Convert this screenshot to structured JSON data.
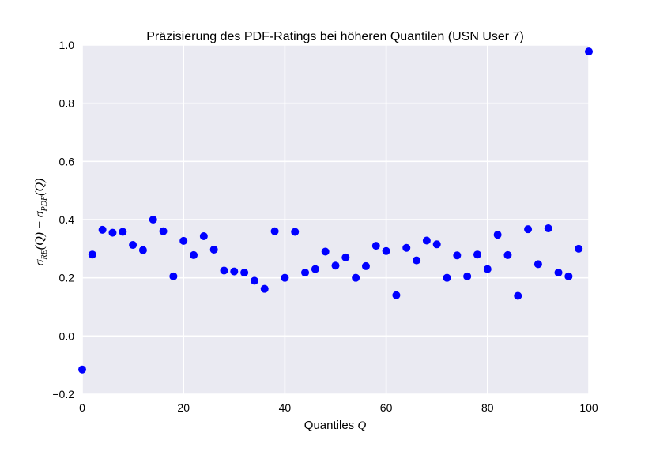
{
  "chart_data": {
    "type": "scatter",
    "title": "Präzisierung des PDF-Ratings bei höheren Quantilen (USN User 7)",
    "xlabel": "Quantiles Q",
    "xlabel_parts": {
      "text": "Quantiles ",
      "math": "Q"
    },
    "ylabel": "σRE(Q) − σPDF(Q)",
    "xlim": [
      0,
      100
    ],
    "ylim": [
      -0.2,
      1.0
    ],
    "x_ticks": [
      0,
      20,
      40,
      60,
      80,
      100
    ],
    "x_tick_labels": [
      "0",
      "20",
      "40",
      "60",
      "80",
      "100"
    ],
    "y_ticks": [
      -0.2,
      0.0,
      0.2,
      0.4,
      0.6,
      0.8,
      1.0
    ],
    "y_tick_labels": [
      "−0.2",
      "0.0",
      "0.2",
      "0.4",
      "0.6",
      "0.8",
      "1.0"
    ],
    "grid": true,
    "series": [
      {
        "color": "#0000ff",
        "points": [
          [
            0,
            -0.115
          ],
          [
            2,
            0.28
          ],
          [
            4,
            0.365
          ],
          [
            6,
            0.355
          ],
          [
            8,
            0.358
          ],
          [
            10,
            0.313
          ],
          [
            12,
            0.295
          ],
          [
            14,
            0.4
          ],
          [
            16,
            0.36
          ],
          [
            18,
            0.205
          ],
          [
            20,
            0.327
          ],
          [
            22,
            0.278
          ],
          [
            24,
            0.343
          ],
          [
            26,
            0.297
          ],
          [
            28,
            0.225
          ],
          [
            30,
            0.222
          ],
          [
            32,
            0.218
          ],
          [
            34,
            0.19
          ],
          [
            36,
            0.162
          ],
          [
            38,
            0.36
          ],
          [
            40,
            0.2
          ],
          [
            42,
            0.358
          ],
          [
            44,
            0.218
          ],
          [
            46,
            0.23
          ],
          [
            48,
            0.29
          ],
          [
            50,
            0.242
          ],
          [
            52,
            0.27
          ],
          [
            54,
            0.2
          ],
          [
            56,
            0.24
          ],
          [
            58,
            0.31
          ],
          [
            60,
            0.292
          ],
          [
            62,
            0.14
          ],
          [
            64,
            0.303
          ],
          [
            66,
            0.26
          ],
          [
            68,
            0.328
          ],
          [
            70,
            0.315
          ],
          [
            72,
            0.2
          ],
          [
            74,
            0.277
          ],
          [
            76,
            0.205
          ],
          [
            78,
            0.28
          ],
          [
            80,
            0.23
          ],
          [
            82,
            0.348
          ],
          [
            84,
            0.278
          ],
          [
            86,
            0.138
          ],
          [
            88,
            0.367
          ],
          [
            90,
            0.247
          ],
          [
            92,
            0.37
          ],
          [
            94,
            0.218
          ],
          [
            96,
            0.205
          ],
          [
            98,
            0.3
          ],
          [
            100,
            0.978
          ]
        ]
      }
    ],
    "colors": {
      "background": "#eaeaf2",
      "grid": "#ffffff",
      "marker": "#0000ff"
    }
  }
}
